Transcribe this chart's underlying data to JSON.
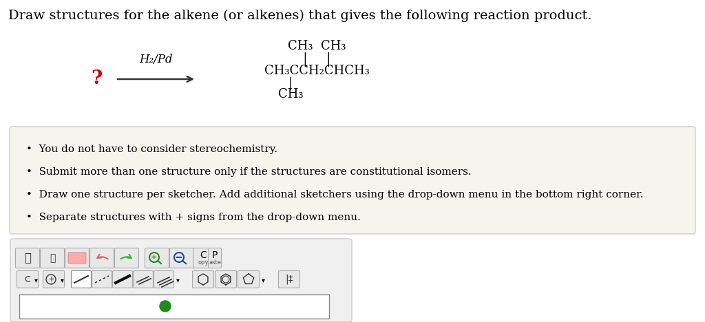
{
  "title": "Draw structures for the alkene (or alkenes) that gives the following reaction product.",
  "title_fontsize": 14,
  "title_color": "#000000",
  "bg_color": "#ffffff",
  "question_mark": "?",
  "question_mark_color": "#cc0000",
  "arrow_label": "H₂/Pd",
  "bullet_points": [
    "You do not have to consider stereochemistry.",
    "Submit more than one structure only if the structures are constitutional isomers.",
    "Draw one structure per sketcher. Add additional sketchers using the drop-down menu in the bottom right corner.",
    "Separate structures with + signs from the drop-down menu."
  ],
  "bullet_box_bg": "#f5f5ee",
  "bullet_box_edge": "#cccccc",
  "toolbar_bg": "#f0f0f0",
  "toolbar_edge": "#cccccc"
}
